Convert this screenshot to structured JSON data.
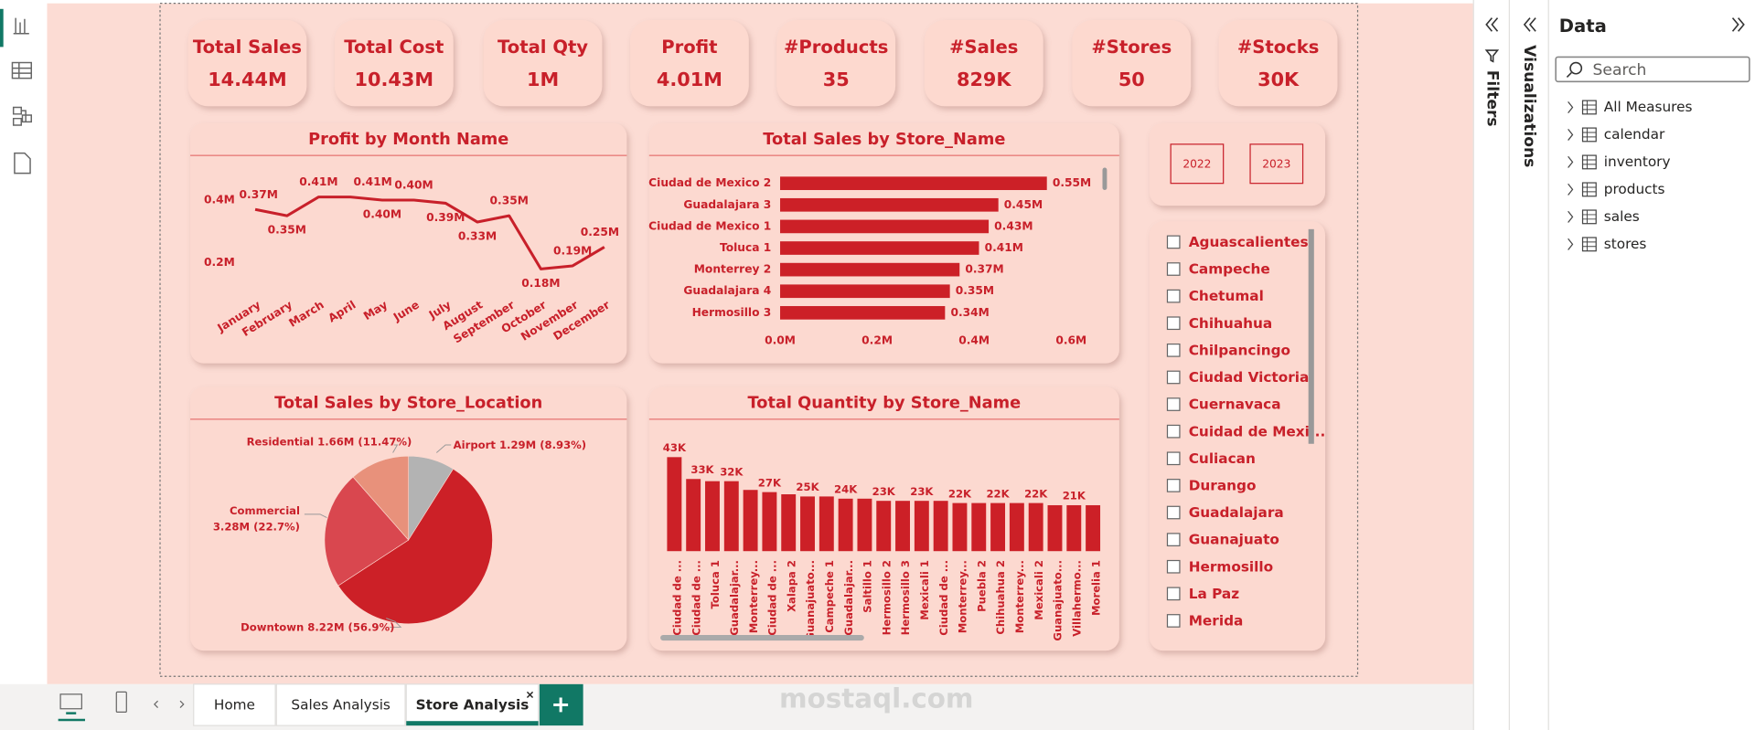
{
  "cards": [
    {
      "label": "Total Sales",
      "value": "14.44M"
    },
    {
      "label": "Total Cost",
      "value": "10.43M"
    },
    {
      "label": "Total Qty",
      "value": "1M"
    },
    {
      "label": "Profit",
      "value": "4.01M"
    },
    {
      "label": "#Products",
      "value": "35"
    },
    {
      "label": "#Sales",
      "value": "829K"
    },
    {
      "label": "#Stores",
      "value": "50"
    },
    {
      "label": "#Stocks",
      "value": "30K"
    }
  ],
  "chart_data": [
    {
      "type": "line",
      "title": "Profit by Month Name",
      "categories": [
        "January",
        "February",
        "March",
        "April",
        "May",
        "June",
        "July",
        "August",
        "September",
        "October",
        "November",
        "December"
      ],
      "values": [
        0.37,
        0.35,
        0.41,
        0.41,
        0.4,
        0.4,
        0.39,
        0.33,
        0.35,
        0.18,
        0.19,
        0.25
      ],
      "value_labels": [
        "0.37M",
        "0.35M",
        "0.41M",
        "0.41M",
        "0.40M",
        "0.40M",
        "0.39M",
        "0.33M",
        "0.35M",
        "0.18M",
        "0.19M",
        "0.25M"
      ],
      "color": "#c8202a",
      "ylim": [
        0.1,
        0.45
      ],
      "yticks": [
        {
          "value": 0.2,
          "label": "0.2M"
        },
        {
          "value": 0.4,
          "label": "0.4M"
        }
      ]
    },
    {
      "type": "hbar",
      "title": "Total Sales by Store_Name",
      "categories": [
        "Ciudad de Mexico 2",
        "Guadalajara 3",
        "Ciudad de Mexico 1",
        "Toluca 1",
        "Monterrey 2",
        "Guadalajara 4",
        "Hermosillo 3"
      ],
      "values": [
        0.55,
        0.45,
        0.43,
        0.41,
        0.37,
        0.35,
        0.34
      ],
      "value_labels": [
        "0.55M",
        "0.45M",
        "0.43M",
        "0.41M",
        "0.37M",
        "0.35M",
        "0.34M"
      ],
      "color": "#cc2027",
      "xlim": [
        0,
        0.6
      ],
      "xticks": [
        {
          "value": 0,
          "label": "0.0M"
        },
        {
          "value": 0.2,
          "label": "0.2M"
        },
        {
          "value": 0.4,
          "label": "0.4M"
        },
        {
          "value": 0.6,
          "label": "0.6M"
        }
      ]
    },
    {
      "type": "pie",
      "title": "Total Sales by Store_Location",
      "categories": [
        "Airport",
        "Downtown",
        "Commercial",
        "Residential"
      ],
      "values": [
        1.29,
        8.22,
        3.28,
        1.66
      ],
      "value_labels": [
        "1.29M (8.93%)",
        "8.22M (56.9%)",
        "3.28M (22.7%)",
        "1.66M (11.47%)"
      ],
      "colors": [
        "#b3b3b3",
        "#cc2027",
        "#d9474f",
        "#e8917b"
      ]
    },
    {
      "type": "column",
      "title": "Total Quantity by Store_Name",
      "categories": [
        "Ciudad de ...",
        "Ciudad de ...",
        "Toluca 1",
        "Guadalajar...",
        "Monterrey...",
        "Ciudad de ...",
        "Xalapa 2",
        "Guanajuato...",
        "Campeche 1",
        "Guadalajar...",
        "Saltillo 1",
        "Hermosillo 2",
        "Hermosillo 3",
        "Mexicali 1",
        "Ciudad de ...",
        "Monterrey...",
        "Puebla 2",
        "Chihuahua 2",
        "Monterrey...",
        "Mexicali 2",
        "Guanajuato...",
        "Villahermo...",
        "Morelia 1"
      ],
      "values": [
        43,
        33,
        32,
        32,
        28,
        27,
        26,
        25,
        25,
        24,
        24,
        23,
        23,
        23,
        23,
        22,
        22,
        22,
        22,
        22,
        21,
        21,
        21
      ],
      "value_labels": [
        "43K",
        "33K",
        null,
        "32K",
        null,
        "27K",
        null,
        "25K",
        null,
        "24K",
        null,
        "23K",
        null,
        "23K",
        null,
        "22K",
        null,
        "22K",
        null,
        "22K",
        null,
        "21K",
        null
      ],
      "color": "#cc2027",
      "ylim": [
        0,
        45
      ]
    }
  ],
  "slicers": {
    "years": [
      "2022",
      "2023"
    ],
    "locations": [
      "Aguascalientes",
      "Campeche",
      "Chetumal",
      "Chihuahua",
      "Chilpancingo",
      "Ciudad Victoria",
      "Cuernavaca",
      "Cuidad de Mexi...",
      "Culiacan",
      "Durango",
      "Guadalajara",
      "Guanajuato",
      "Hermosillo",
      "La Paz",
      "Merida"
    ]
  },
  "panes": {
    "filters": "Filters",
    "visualizations": "Visualizations",
    "data": {
      "title": "Data",
      "search_placeholder": "Search",
      "items": [
        "All Measures",
        "calendar",
        "inventory",
        "products",
        "sales",
        "stores"
      ]
    }
  },
  "tabs": [
    "Home",
    "Sales Analysis",
    "Store Analysis"
  ],
  "watermark": "mostaql.com"
}
